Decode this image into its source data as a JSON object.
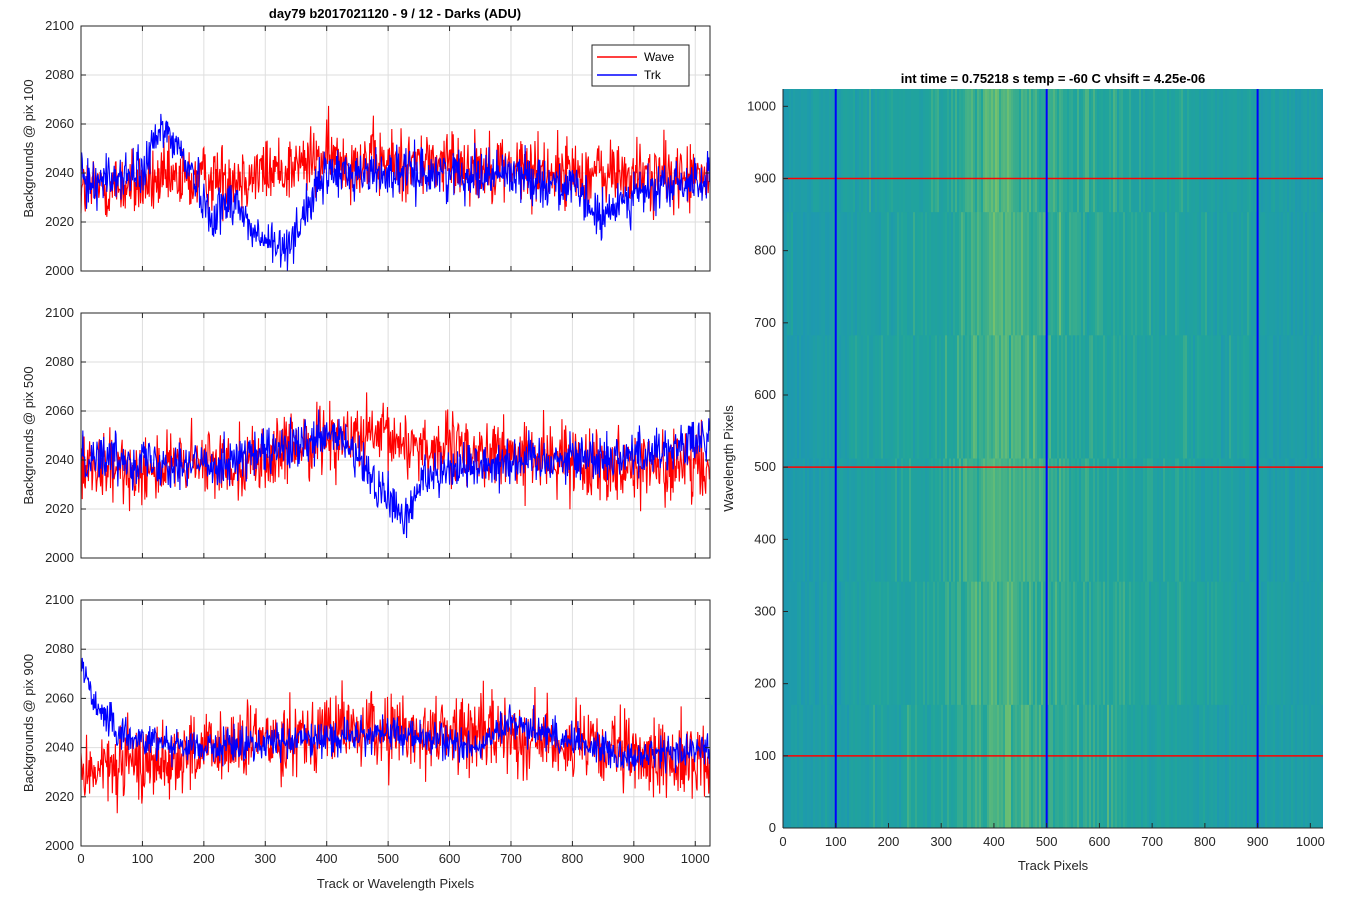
{
  "figure_title": "day79 b2017021120 - 9 / 12 - Darks (ADU)",
  "colors": {
    "wave": "#ff0000",
    "trk": "#0000ff",
    "grid": "#dedede",
    "axis": "#262626",
    "heatmap_low": "#1a8cc7",
    "heatmap_mid": "#21a59a",
    "heatmap_high": "#b8d84a"
  },
  "chart_data": [
    {
      "type": "line",
      "title": "day79 b2017021120 - 9 / 12 - Darks (ADU)",
      "xlabel": "",
      "ylabel": "Backgrounds @ pix 100",
      "xlim": [
        0,
        1024
      ],
      "ylim": [
        2000,
        2100
      ],
      "xticks": [
        "0",
        "100",
        "200",
        "300",
        "400",
        "500",
        "600",
        "700",
        "800",
        "900",
        "1000"
      ],
      "yticks": [
        "2000",
        "2020",
        "2040",
        "2060",
        "2080",
        "2100"
      ],
      "grid": true,
      "legend": {
        "placement": "top-right",
        "entries": [
          "Wave",
          "Trk"
        ]
      },
      "series": [
        {
          "name": "Wave",
          "mean_profile": [
            [
              0,
              2033
            ],
            [
              300,
              2040
            ],
            [
              400,
              2046
            ],
            [
              500,
              2044
            ],
            [
              600,
              2044
            ],
            [
              800,
              2040
            ],
            [
              1024,
              2038
            ]
          ],
          "noise": 10,
          "min": 2002,
          "max": 2082,
          "points": 1024
        },
        {
          "name": "Trk",
          "mean_profile": [
            [
              0,
              2036
            ],
            [
              100,
              2040
            ],
            [
              130,
              2058
            ],
            [
              150,
              2054
            ],
            [
              190,
              2036
            ],
            [
              210,
              2022
            ],
            [
              250,
              2030
            ],
            [
              280,
              2015
            ],
            [
              330,
              2008
            ],
            [
              360,
              2022
            ],
            [
              400,
              2040
            ],
            [
              700,
              2040
            ],
            [
              800,
              2034
            ],
            [
              850,
              2020
            ],
            [
              880,
              2030
            ],
            [
              1024,
              2038
            ]
          ],
          "noise": 7,
          "min": 2000,
          "max": 2072,
          "points": 1024
        }
      ]
    },
    {
      "type": "line",
      "title": "",
      "xlabel": "",
      "ylabel": "Backgrounds @ pix 500",
      "xlim": [
        0,
        1024
      ],
      "ylim": [
        2000,
        2100
      ],
      "xticks": [
        "0",
        "100",
        "200",
        "300",
        "400",
        "500",
        "600",
        "700",
        "800",
        "900",
        "1000"
      ],
      "yticks": [
        "2000",
        "2020",
        "2040",
        "2060",
        "2080",
        "2100"
      ],
      "grid": true,
      "series": [
        {
          "name": "Wave",
          "mean_profile": [
            [
              0,
              2035
            ],
            [
              300,
              2040
            ],
            [
              400,
              2050
            ],
            [
              500,
              2048
            ],
            [
              600,
              2044
            ],
            [
              900,
              2038
            ],
            [
              1024,
              2036
            ]
          ],
          "noise": 10,
          "min": 2002,
          "max": 2082,
          "points": 1024
        },
        {
          "name": "Trk",
          "mean_profile": [
            [
              0,
              2042
            ],
            [
              200,
              2038
            ],
            [
              350,
              2045
            ],
            [
              420,
              2050
            ],
            [
              480,
              2030
            ],
            [
              530,
              2015
            ],
            [
              560,
              2035
            ],
            [
              700,
              2040
            ],
            [
              900,
              2042
            ],
            [
              1024,
              2048
            ]
          ],
          "noise": 7,
          "min": 2006,
          "max": 2080,
          "points": 1024
        }
      ]
    },
    {
      "type": "line",
      "title": "",
      "xlabel": "Track or Wavelength Pixels",
      "ylabel": "Backgrounds @ pix 900",
      "xlim": [
        0,
        1024
      ],
      "ylim": [
        2000,
        2100
      ],
      "xticks": [
        "0",
        "100",
        "200",
        "300",
        "400",
        "500",
        "600",
        "700",
        "800",
        "900",
        "1000"
      ],
      "yticks": [
        "2000",
        "2020",
        "2040",
        "2060",
        "2080",
        "2100"
      ],
      "grid": true,
      "series": [
        {
          "name": "Wave",
          "mean_profile": [
            [
              0,
              2030
            ],
            [
              200,
              2038
            ],
            [
              400,
              2048
            ],
            [
              500,
              2046
            ],
            [
              700,
              2046
            ],
            [
              900,
              2036
            ],
            [
              1024,
              2034
            ]
          ],
          "noise": 11,
          "min": 2003,
          "max": 2084,
          "points": 1024
        },
        {
          "name": "Trk",
          "mean_profile": [
            [
              0,
              2075
            ],
            [
              20,
              2060
            ],
            [
              60,
              2045
            ],
            [
              200,
              2040
            ],
            [
              400,
              2044
            ],
            [
              500,
              2046
            ],
            [
              650,
              2040
            ],
            [
              700,
              2050
            ],
            [
              900,
              2036
            ],
            [
              1024,
              2040
            ]
          ],
          "noise": 5,
          "min": 2015,
          "max": 2082,
          "points": 1024
        }
      ]
    },
    {
      "type": "heatmap",
      "title": "int time = 0.75218 s    temp = -60 C    vhsift = 4.25e-06",
      "xlabel": "Track Pixels",
      "ylabel": "Wavelength Pixels",
      "xlim": [
        0,
        1024
      ],
      "ylim": [
        0,
        1024
      ],
      "xticks": [
        "0",
        "100",
        "200",
        "300",
        "400",
        "500",
        "600",
        "700",
        "800",
        "900",
        "1000"
      ],
      "yticks": [
        "0",
        "100",
        "200",
        "300",
        "400",
        "500",
        "600",
        "700",
        "800",
        "900",
        "1000"
      ],
      "grid": false,
      "colorscale": "parula",
      "brightness_profile": [
        [
          0,
          0.3
        ],
        [
          150,
          0.42
        ],
        [
          300,
          0.48
        ],
        [
          400,
          0.66
        ],
        [
          500,
          0.56
        ],
        [
          600,
          0.5
        ],
        [
          750,
          0.44
        ],
        [
          900,
          0.38
        ],
        [
          1024,
          0.34
        ]
      ],
      "marker_lines": {
        "vertical_blue": [
          100,
          500,
          900
        ],
        "horizontal_red": [
          100,
          500,
          900
        ]
      }
    }
  ]
}
